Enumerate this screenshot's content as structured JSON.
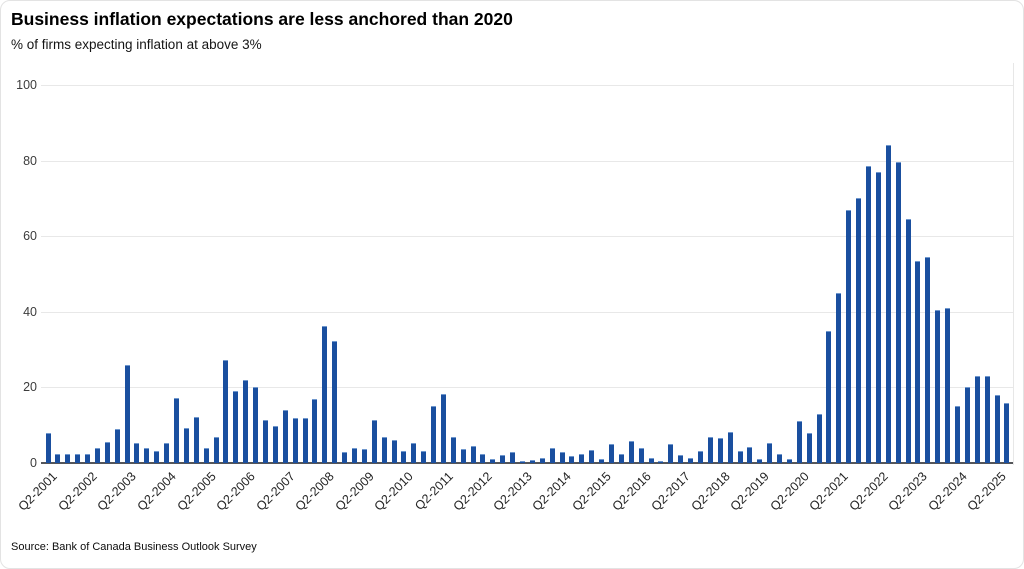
{
  "header": {
    "title": "Business inflation expectations are less anchored than 2020",
    "subtitle": "% of firms expecting inflation at above 3%"
  },
  "source": "Source: Bank of Canada Business Outlook Survey",
  "chart_data": {
    "type": "bar",
    "title": "Business inflation expectations are less anchored than 2020",
    "subtitle": "% of firms expecting inflation at above 3%",
    "xlabel": "",
    "ylabel": "% of firms expecting inflation at above 3%",
    "ylim": [
      0,
      100
    ],
    "yticks": [
      0,
      20,
      40,
      60,
      80,
      100
    ],
    "grid": "horizontal",
    "legend_position": "none",
    "bar_color": "#1a4f9f",
    "grid_color": "#e8e8e8",
    "axis_color": "#54565a",
    "tick_every": 4,
    "tick_labels": [
      "Q2-2001",
      "Q2-2002",
      "Q2-2003",
      "Q2-2004",
      "Q2-2005",
      "Q2-2006",
      "Q2-2007",
      "Q2-2008",
      "Q2-2009",
      "Q2-2010",
      "Q2-2011",
      "Q2-2012",
      "Q2-2013",
      "Q2-2014",
      "Q2-2015",
      "Q2-2016",
      "Q2-2017",
      "Q2-2018",
      "Q2-2019",
      "Q2-2020",
      "Q2-2021",
      "Q2-2022",
      "Q2-2023",
      "Q2-2024",
      "Q2-2025"
    ],
    "quarters": [
      "2001Q2",
      "2001Q3",
      "2001Q4",
      "2002Q1",
      "2002Q2",
      "2002Q3",
      "2002Q4",
      "2003Q1",
      "2003Q2",
      "2003Q3",
      "2003Q4",
      "2004Q1",
      "2004Q2",
      "2004Q3",
      "2004Q4",
      "2005Q1",
      "2005Q2",
      "2005Q3",
      "2005Q4",
      "2006Q1",
      "2006Q2",
      "2006Q3",
      "2006Q4",
      "2007Q1",
      "2007Q2",
      "2007Q3",
      "2007Q4",
      "2008Q1",
      "2008Q2",
      "2008Q3",
      "2008Q4",
      "2009Q1",
      "2009Q2",
      "2009Q3",
      "2009Q4",
      "2010Q1",
      "2010Q2",
      "2010Q3",
      "2010Q4",
      "2011Q1",
      "2011Q2",
      "2011Q3",
      "2011Q4",
      "2012Q1",
      "2012Q2",
      "2012Q3",
      "2012Q4",
      "2013Q1",
      "2013Q2",
      "2013Q3",
      "2013Q4",
      "2014Q1",
      "2014Q2",
      "2014Q3",
      "2014Q4",
      "2015Q1",
      "2015Q2",
      "2015Q3",
      "2015Q4",
      "2016Q1",
      "2016Q2",
      "2016Q3",
      "2016Q4",
      "2017Q1",
      "2017Q2",
      "2017Q3",
      "2017Q4",
      "2018Q1",
      "2018Q2",
      "2018Q3",
      "2018Q4",
      "2019Q1",
      "2019Q2",
      "2019Q3",
      "2019Q4",
      "2020Q1",
      "2020Q2",
      "2020Q3",
      "2020Q4",
      "2021Q1",
      "2021Q2",
      "2021Q3",
      "2021Q4",
      "2022Q1",
      "2022Q2",
      "2022Q3",
      "2022Q4",
      "2023Q1",
      "2023Q2",
      "2023Q3",
      "2023Q4",
      "2024Q1",
      "2024Q2",
      "2024Q3",
      "2024Q4",
      "2025Q1",
      "2025Q2",
      "2025Q3"
    ],
    "values": [
      8,
      2.3,
      2.5,
      2.3,
      2.5,
      4,
      5.5,
      9,
      26,
      5.4,
      3.9,
      3.2,
      5.2,
      17.3,
      9.3,
      12.1,
      4,
      7,
      27.2,
      19,
      21.9,
      20.1,
      11.3,
      9.8,
      14,
      12,
      12,
      17,
      36.2,
      32.2,
      2.9,
      4.1,
      3.8,
      11.3,
      7,
      6.1,
      3.1,
      5.2,
      3.1,
      15.1,
      18.2,
      7,
      3.8,
      4.5,
      2.3,
      1,
      2.1,
      3,
      0.5,
      0.7,
      1.2,
      4.1,
      3,
      1.9,
      2.5,
      3.4,
      1,
      5.1,
      2.3,
      5.8,
      4.1,
      1.2,
      0.4,
      5.1,
      2.1,
      1.4,
      3.2,
      7,
      6.5,
      8.2,
      3.2,
      4.2,
      1.1,
      5.4,
      2.3,
      1,
      11.1,
      8,
      13,
      35,
      45,
      67,
      70,
      78.5,
      77,
      84,
      79.5,
      64.5,
      53.5,
      54.5,
      40.5,
      41,
      15,
      20,
      23,
      23,
      18,
      16
    ]
  }
}
